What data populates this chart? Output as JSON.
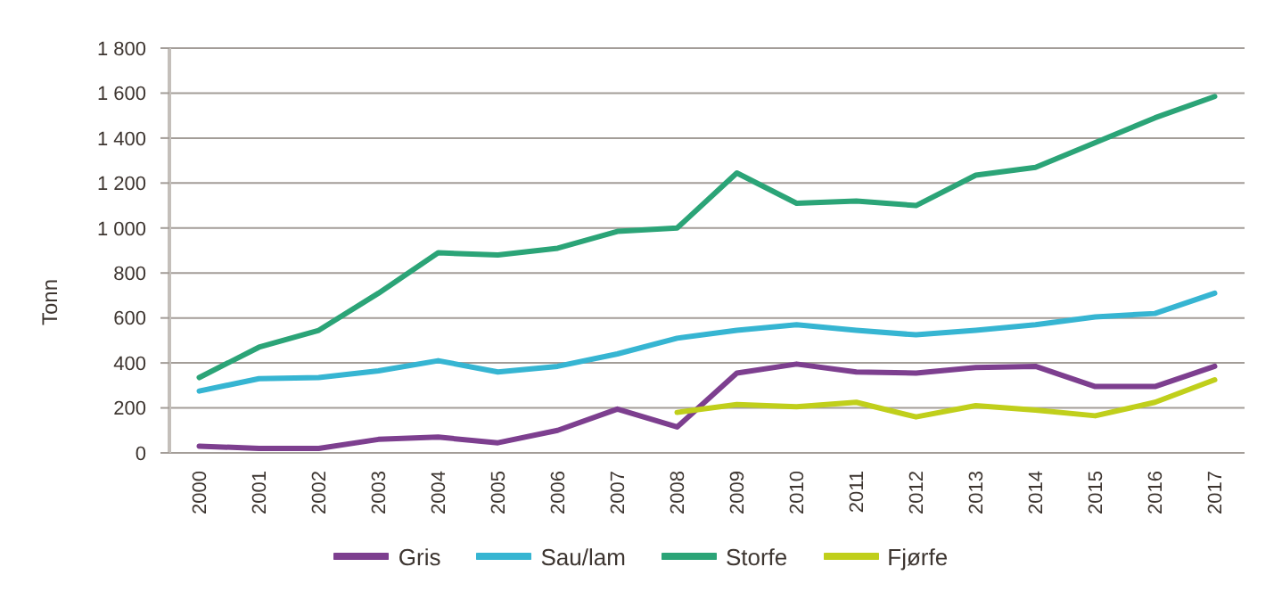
{
  "chart_data": {
    "type": "line",
    "ylabel": "Tonn",
    "categories": [
      "2000",
      "2001",
      "2002",
      "2003",
      "2004",
      "2005",
      "2006",
      "2007",
      "2008",
      "2009",
      "2010",
      "2011",
      "2012",
      "2013",
      "2014",
      "2015",
      "2016",
      "2017"
    ],
    "series": [
      {
        "name": "Gris",
        "color": "#7d3f8f",
        "values": [
          30,
          20,
          20,
          60,
          70,
          45,
          100,
          195,
          115,
          355,
          395,
          360,
          355,
          380,
          385,
          295,
          295,
          385
        ]
      },
      {
        "name": "Sau/lam",
        "color": "#36b5d2",
        "values": [
          275,
          330,
          335,
          365,
          410,
          360,
          385,
          440,
          510,
          545,
          570,
          545,
          525,
          545,
          570,
          605,
          620,
          710
        ]
      },
      {
        "name": "Storfe",
        "color": "#2ba477",
        "values": [
          335,
          470,
          545,
          710,
          890,
          880,
          910,
          985,
          1000,
          1245,
          1110,
          1120,
          1100,
          1235,
          1270,
          1380,
          1490,
          1585
        ]
      },
      {
        "name": "Fjørfe",
        "color": "#c0cf1b",
        "values": [
          null,
          null,
          null,
          null,
          null,
          null,
          null,
          null,
          180,
          215,
          205,
          225,
          160,
          210,
          190,
          165,
          225,
          325
        ]
      }
    ],
    "ylim": [
      0,
      1800
    ],
    "yticks": [
      0,
      200,
      400,
      600,
      800,
      {
        "value": 1000,
        "label": "1 000"
      },
      {
        "value": 1200,
        "label": "1 200"
      },
      {
        "value": 1400,
        "label": "1 400"
      },
      {
        "value": 1600,
        "label": "1 600"
      },
      {
        "value": 1800,
        "label": "1 800"
      }
    ],
    "grid": "y",
    "legend": "bottom",
    "marker": "none",
    "line_style": "solid"
  }
}
